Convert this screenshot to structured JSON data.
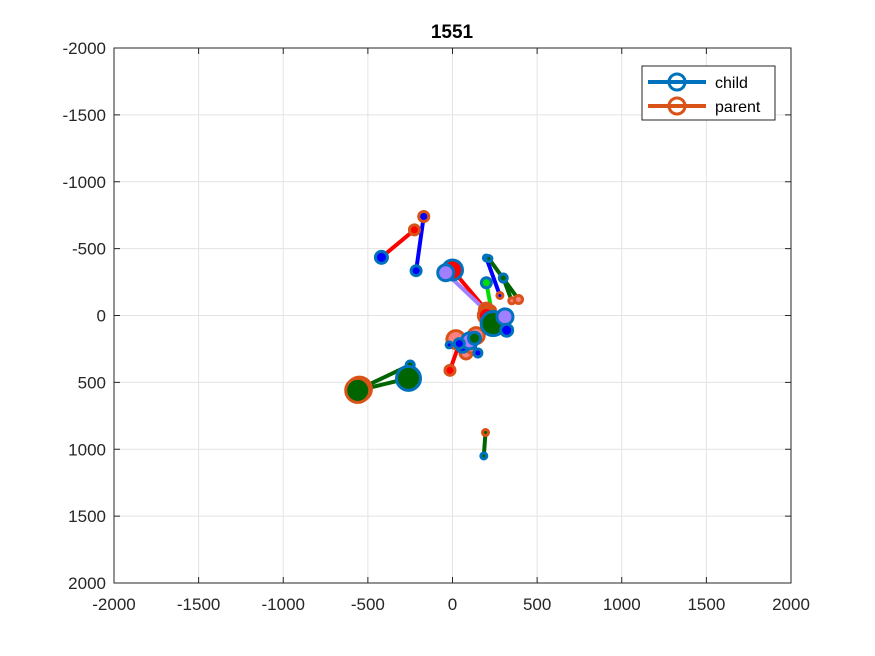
{
  "chart_data": {
    "type": "scatter",
    "title": "1551",
    "xlabel": "",
    "ylabel": "",
    "xlim": [
      -2000,
      2000
    ],
    "ylim": [
      -2000,
      2000
    ],
    "y_reversed": true,
    "grid": true,
    "legend_position": "top-right",
    "x_ticks": [
      -2000,
      -1500,
      -1000,
      -500,
      0,
      500,
      1000,
      1500,
      2000
    ],
    "y_ticks": [
      -2000,
      -1500,
      -1000,
      -500,
      0,
      500,
      1000,
      1500,
      2000
    ],
    "x_tick_labels": [
      "-2000",
      "-1500",
      "-1000",
      "-500",
      "0",
      "500",
      "1000",
      "1500",
      "2000"
    ],
    "y_tick_labels": [
      "-2000",
      "-1500",
      "-1000",
      "-500",
      "0",
      "500",
      "1000",
      "1500",
      "2000"
    ],
    "legend": [
      {
        "label": "child",
        "color": "#0072BD"
      },
      {
        "label": "parent",
        "color": "#D95319"
      }
    ],
    "links": [
      {
        "child": [
          -420,
          -435
        ],
        "parent": [
          -225,
          -640
        ],
        "line_color": "#FF0000",
        "child_fill": "#0000FF",
        "parent_fill": "#FF0000",
        "child_size": 6,
        "parent_size": 5
      },
      {
        "child": [
          -215,
          -335
        ],
        "parent": [
          -170,
          -740
        ],
        "line_color": "#0000FF",
        "child_fill": "#0000FF",
        "parent_fill": "#0000FF",
        "child_size": 5,
        "parent_size": 5
      },
      {
        "child": [
          0,
          -340
        ],
        "parent": [
          200,
          -40
        ],
        "line_color": "#FF0000",
        "child_fill": "#FF0000",
        "parent_fill": "#FF0000",
        "child_size": 10,
        "parent_size": 7
      },
      {
        "child": [
          -40,
          -320
        ],
        "parent": [
          210,
          -20
        ],
        "line_color": "#A080FF",
        "child_fill": "#A080FF",
        "parent_fill": "#A080FF",
        "child_size": 8,
        "parent_size": 7
      },
      {
        "child": [
          200,
          -430
        ],
        "parent": [
          280,
          -150
        ],
        "line_color": "#0000FF",
        "child_fill": "#0000FF",
        "parent_fill": "#0000FF",
        "child_size": 3,
        "parent_size": 3
      },
      {
        "child": [
          215,
          -425
        ],
        "parent": [
          390,
          -120
        ],
        "line_color": "#006400",
        "child_fill": "#006400",
        "parent_fill": "#FF8080",
        "child_size": 3,
        "parent_size": 4
      },
      {
        "child": [
          300,
          -280
        ],
        "parent": [
          350,
          -110
        ],
        "line_color": "#006400",
        "child_fill": "#006400",
        "parent_fill": "#FF8080",
        "child_size": 4,
        "parent_size": 3
      },
      {
        "child": [
          200,
          -245
        ],
        "parent": [
          230,
          -40
        ],
        "line_color": "#00DD00",
        "child_fill": "#00DD00",
        "parent_fill": "#00DD00",
        "child_size": 5,
        "parent_size": 4
      },
      {
        "child": [
          240,
          60
        ],
        "parent": [
          200,
          0
        ],
        "line_color": "#006400",
        "child_fill": "#006400",
        "parent_fill": "#FF0000",
        "child_size": 12,
        "parent_size": 8
      },
      {
        "child": [
          310,
          10
        ],
        "parent": [
          220,
          30
        ],
        "line_color": "#0000FF",
        "child_fill": "#A080FF",
        "parent_fill": "#FF8080",
        "child_size": 8,
        "parent_size": 6
      },
      {
        "child": [
          320,
          110
        ],
        "parent": [
          240,
          90
        ],
        "line_color": "#0000FF",
        "child_fill": "#0000FF",
        "parent_fill": "#FF8080",
        "child_size": 6,
        "parent_size": 5
      },
      {
        "child": [
          60,
          230
        ],
        "parent": [
          20,
          180
        ],
        "line_color": "#FF0000",
        "child_fill": "#0000FF",
        "parent_fill": "#FF8080",
        "child_size": 6,
        "parent_size": 9
      },
      {
        "child": [
          100,
          190
        ],
        "parent": [
          80,
          280
        ],
        "line_color": "#A080FF",
        "child_fill": "#A080FF",
        "parent_fill": "#FF8080",
        "child_size": 8,
        "parent_size": 6
      },
      {
        "child": [
          130,
          170
        ],
        "parent": [
          140,
          150
        ],
        "line_color": "#006400",
        "child_fill": "#006400",
        "parent_fill": "#FF8080",
        "child_size": 6,
        "parent_size": 8
      },
      {
        "child": [
          -20,
          220
        ],
        "parent": [
          110,
          250
        ],
        "line_color": "#0000FF",
        "child_fill": "#0000FF",
        "parent_fill": "#FF8080",
        "child_size": 3,
        "parent_size": 4
      },
      {
        "child": [
          150,
          280
        ],
        "parent": [
          110,
          190
        ],
        "line_color": "#0000FF",
        "child_fill": "#0000FF",
        "parent_fill": "#0000FF",
        "child_size": 4,
        "parent_size": 5
      },
      {
        "child": [
          40,
          210
        ],
        "parent": [
          -15,
          410
        ],
        "line_color": "#FF0000",
        "child_fill": "#0000FF",
        "parent_fill": "#FF0000",
        "child_size": 5,
        "parent_size": 5
      },
      {
        "child": [
          -250,
          370
        ],
        "parent": [
          -550,
          550
        ],
        "line_color": "#006400",
        "child_fill": "#006400",
        "parent_fill": "#006400",
        "child_size": 4,
        "parent_size": 12
      },
      {
        "child": [
          -260,
          470
        ],
        "parent": [
          -560,
          560
        ],
        "line_color": "#006400",
        "child_fill": "#006400",
        "parent_fill": "#006400",
        "child_size": 12,
        "parent_size": 12
      },
      {
        "child": [
          185,
          1050
        ],
        "parent": [
          195,
          875
        ],
        "line_color": "#006400",
        "child_fill": "#006400",
        "parent_fill": "#006400",
        "child_size": 3,
        "parent_size": 3
      }
    ]
  }
}
